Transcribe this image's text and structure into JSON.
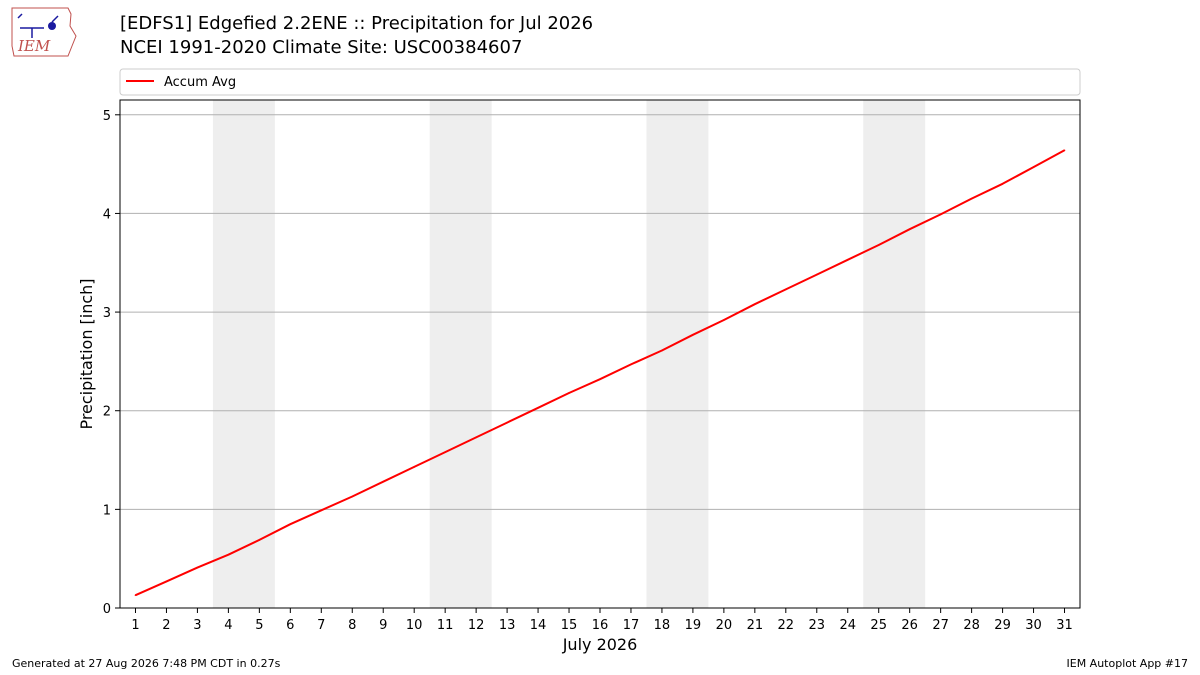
{
  "header": {
    "title_line1": "[EDFS1] Edgefied 2.2ENE :: Precipitation for Jul 2026",
    "title_line2": "NCEI 1991-2020 Climate Site: USC00384607"
  },
  "logo": {
    "text": "IEM",
    "icon": "iem-logo-icon"
  },
  "footer": {
    "generated": "Generated at 27 Aug 2026 7:48 PM CDT in 0.27s",
    "app": "IEM Autoplot App #17"
  },
  "chart_data": {
    "type": "line",
    "title": "[EDFS1] Edgefied 2.2ENE :: Precipitation for Jul 2026",
    "subtitle": "NCEI 1991-2020 Climate Site: USC00384607",
    "xlabel": "July 2026",
    "ylabel": "Precipitation [inch]",
    "x": [
      1,
      2,
      3,
      4,
      5,
      6,
      7,
      8,
      9,
      10,
      11,
      12,
      13,
      14,
      15,
      16,
      17,
      18,
      19,
      20,
      21,
      22,
      23,
      24,
      25,
      26,
      27,
      28,
      29,
      30,
      31
    ],
    "xlim": [
      0.5,
      31.5
    ],
    "ylim": [
      0,
      5.15
    ],
    "yticks": [
      0,
      1,
      2,
      3,
      4,
      5
    ],
    "grid": "y",
    "weekend_shading": [
      [
        3.5,
        5.5
      ],
      [
        10.5,
        12.5
      ],
      [
        17.5,
        19.5
      ],
      [
        24.5,
        26.5
      ]
    ],
    "legend": {
      "placement": "top",
      "entries": [
        "Accum Avg"
      ]
    },
    "series": [
      {
        "name": "Accum Avg",
        "color": "#ff0000",
        "values": [
          0.13,
          0.27,
          0.41,
          0.54,
          0.69,
          0.85,
          0.99,
          1.13,
          1.28,
          1.43,
          1.58,
          1.73,
          1.88,
          2.03,
          2.18,
          2.32,
          2.47,
          2.61,
          2.77,
          2.92,
          3.08,
          3.23,
          3.38,
          3.53,
          3.68,
          3.84,
          3.99,
          4.15,
          4.3,
          4.47,
          4.64
        ]
      }
    ]
  }
}
